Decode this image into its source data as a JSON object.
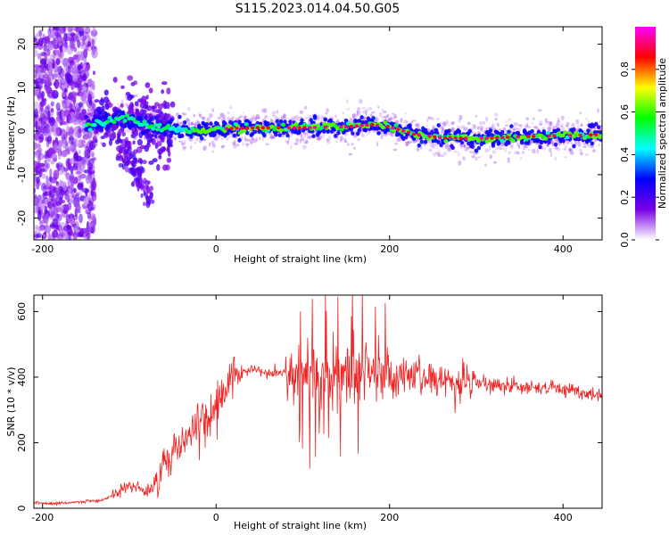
{
  "title": "S115.2023.014.04.50.G05",
  "chart_data": [
    {
      "type": "heatmap",
      "xlabel": "Height of straight line (km)",
      "ylabel": "Frequency (Hz)",
      "xlim": [
        -210,
        445
      ],
      "ylim": [
        -25,
        24
      ],
      "x_ticks": [
        -200,
        0,
        200,
        400
      ],
      "y_ticks": [
        -20,
        -10,
        0,
        10,
        20
      ],
      "grid": false,
      "colorbar": {
        "label": "Normalized spectral amplitude",
        "range": [
          0,
          1
        ],
        "ticks": [
          0.0,
          0.2,
          0.4,
          0.6,
          0.8
        ],
        "tick_labels": [
          "0.0",
          "0.2",
          "0.4",
          "0.6",
          "0.8"
        ],
        "colormap": [
          "#ffffff",
          "#7a00e6",
          "#0000ff",
          "#00ffff",
          "#00ff00",
          "#ffff00",
          "#ff0000",
          "#ff00ff"
        ]
      },
      "ridge": {
        "x": [
          -140,
          -120,
          -100,
          -80,
          -60,
          -40,
          -20,
          0,
          50,
          100,
          150,
          180,
          200,
          230,
          260,
          300,
          350,
          400,
          445
        ],
        "y": [
          1.5,
          2.5,
          3,
          1.5,
          0.5,
          0.3,
          0,
          0.5,
          0.8,
          0.8,
          1.0,
          1.5,
          1.0,
          -0.8,
          -1.5,
          -1.7,
          -1.3,
          -1.0,
          -0.8
        ]
      },
      "noise_region_x": [
        -210,
        -140
      ],
      "dispersed_branch": {
        "x": [
          -110,
          -90,
          -75
        ],
        "y": [
          -3,
          -8,
          -16
        ]
      }
    },
    {
      "type": "line",
      "xlabel": "Height of straight line (km)",
      "ylabel": "SNR (10 * v/v)",
      "xlim": [
        -210,
        445
      ],
      "ylim": [
        0,
        650
      ],
      "x_ticks": [
        -200,
        0,
        200,
        400
      ],
      "y_ticks": [
        0,
        200,
        400,
        600
      ],
      "grid": false,
      "series": [
        {
          "color": "#ee2222",
          "x": [
            -210,
            -180,
            -150,
            -130,
            -110,
            -100,
            -90,
            -80,
            -70,
            -60,
            -50,
            -40,
            -30,
            -20,
            -10,
            0,
            10,
            20,
            30,
            40,
            50,
            60,
            70,
            80,
            90,
            100,
            110,
            120,
            130,
            140,
            150,
            160,
            170,
            180,
            190,
            200,
            220,
            240,
            260,
            280,
            300,
            330,
            360,
            390,
            420,
            445
          ],
          "y": [
            15,
            15,
            20,
            25,
            55,
            70,
            65,
            50,
            80,
            150,
            170,
            200,
            230,
            250,
            270,
            310,
            360,
            405,
            420,
            425,
            420,
            410,
            412,
            415,
            410,
            410,
            405,
            380,
            400,
            410,
            415,
            415,
            410,
            410,
            405,
            400,
            395,
            395,
            390,
            385,
            380,
            375,
            370,
            365,
            355,
            345
          ]
        }
      ]
    }
  ]
}
